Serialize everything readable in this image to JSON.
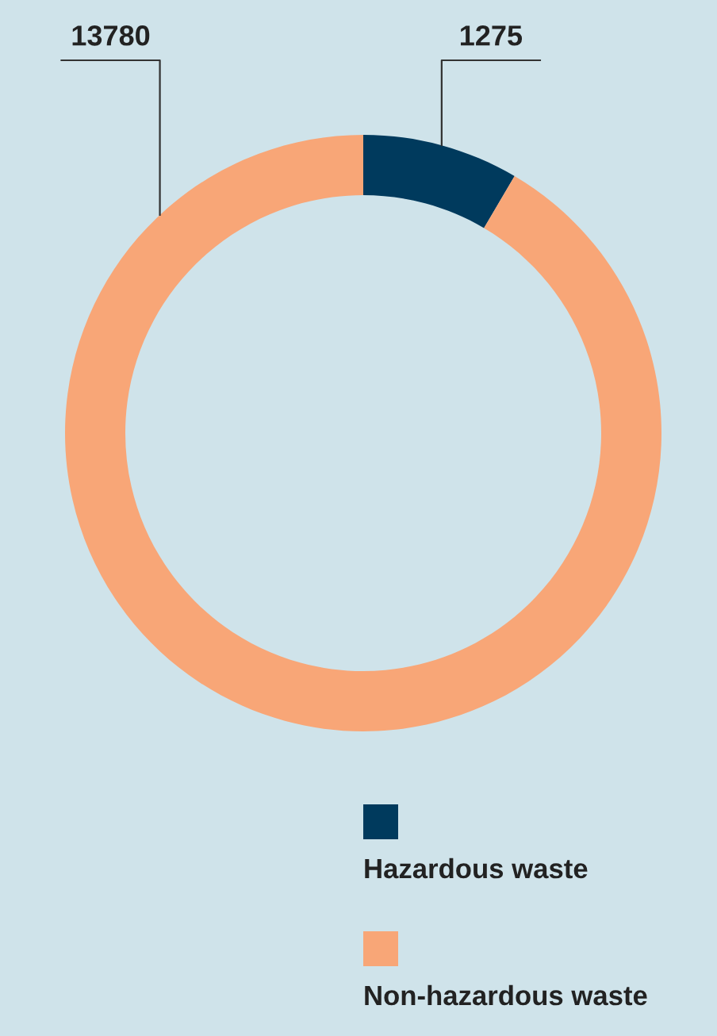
{
  "chart_data": {
    "type": "donut",
    "categories": [
      "Hazardous waste",
      "Non-hazardous waste"
    ],
    "values": [
      1275,
      13780
    ],
    "colors": [
      "#003a5d",
      "#f8a677"
    ],
    "data_labels": true,
    "legend": "bottom right"
  }
}
